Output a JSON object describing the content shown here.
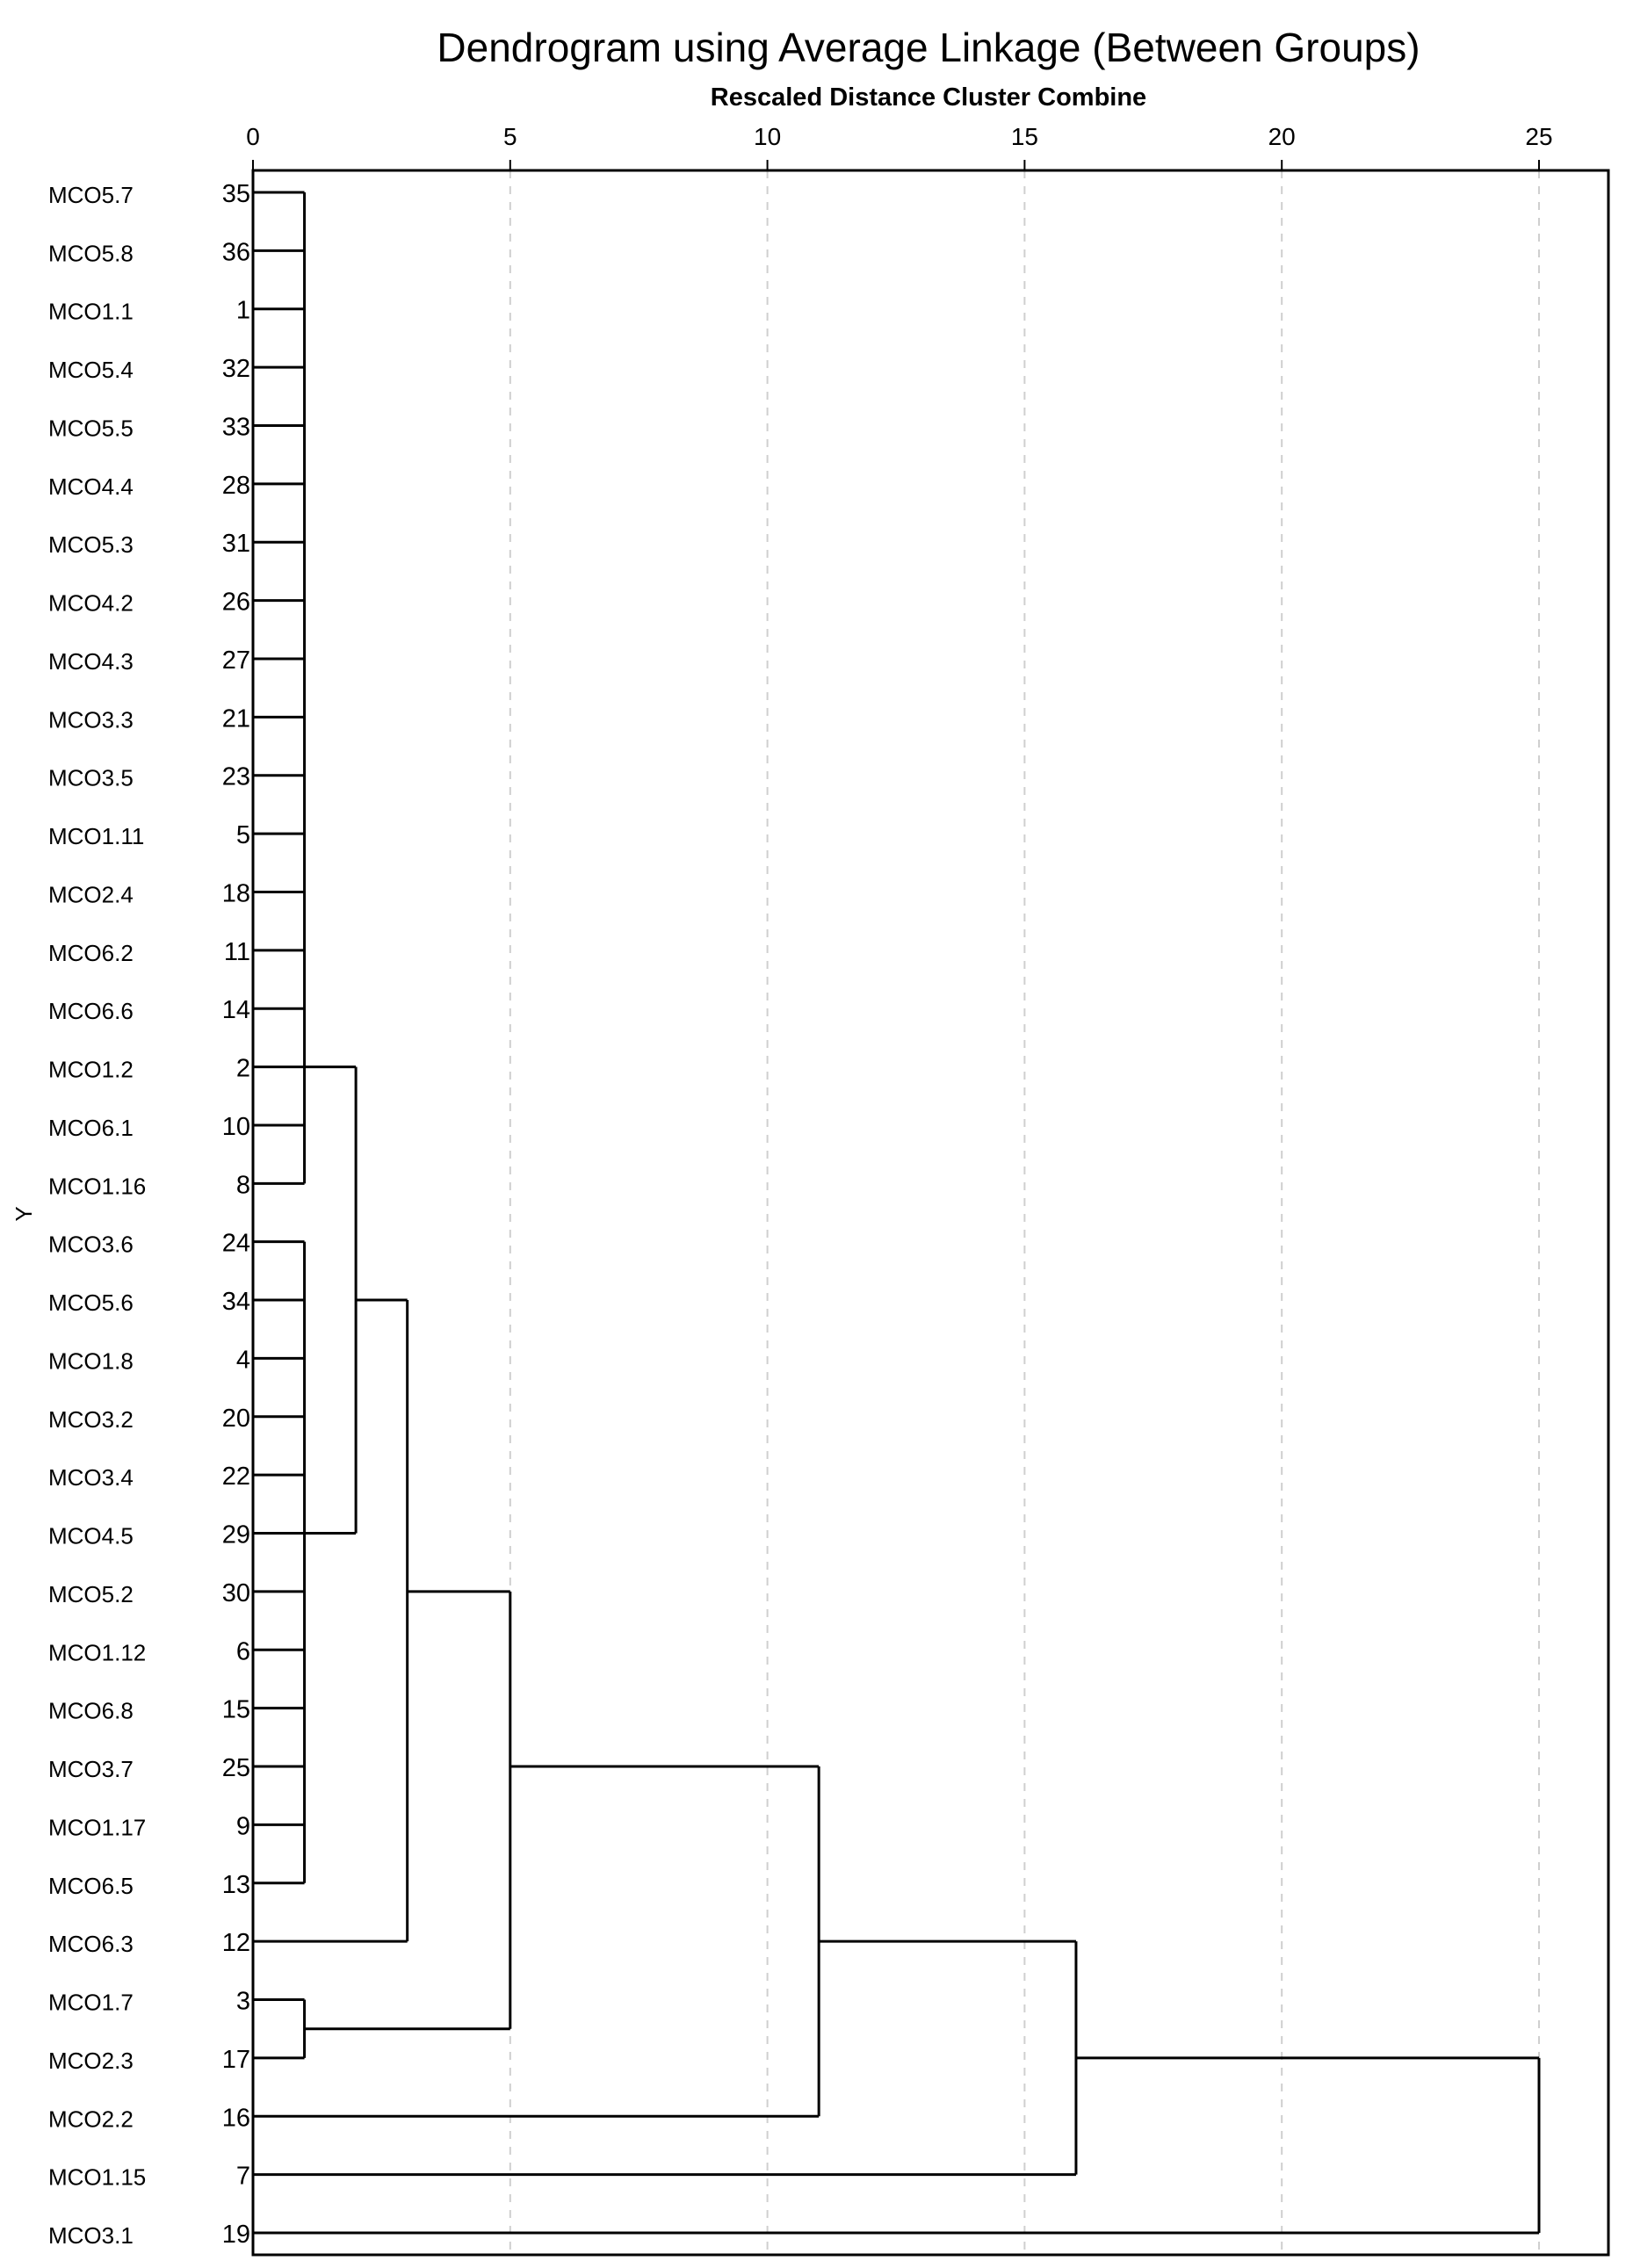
{
  "chart_data": {
    "type": "dendrogram",
    "title": "Dendrogram using Average Linkage (Between Groups)",
    "subtitle": "Rescaled Distance Cluster Combine",
    "ylabel": "Y",
    "xlim": [
      0,
      25
    ],
    "x_ticks": [
      0,
      5,
      10,
      15,
      20,
      25
    ],
    "x_tick_labels": [
      "0",
      "5",
      "10",
      "15",
      "20",
      "25"
    ],
    "grid": "vertical-dashed",
    "leaves": [
      {
        "label": "MCO5.7",
        "id": "35"
      },
      {
        "label": "MCO5.8",
        "id": "36"
      },
      {
        "label": "MCO1.1",
        "id": "1"
      },
      {
        "label": "MCO5.4",
        "id": "32"
      },
      {
        "label": "MCO5.5",
        "id": "33"
      },
      {
        "label": "MCO4.4",
        "id": "28"
      },
      {
        "label": "MCO5.3",
        "id": "31"
      },
      {
        "label": "MCO4.2",
        "id": "26"
      },
      {
        "label": "MCO4.3",
        "id": "27"
      },
      {
        "label": "MCO3.3",
        "id": "21"
      },
      {
        "label": "MCO3.5",
        "id": "23"
      },
      {
        "label": "MCO1.11",
        "id": "5"
      },
      {
        "label": "MCO2.4",
        "id": "18"
      },
      {
        "label": "MCO6.2",
        "id": "11"
      },
      {
        "label": "MCO6.6",
        "id": "14"
      },
      {
        "label": "MCO1.2",
        "id": "2"
      },
      {
        "label": "MCO6.1",
        "id": "10"
      },
      {
        "label": "MCO1.16",
        "id": "8"
      },
      {
        "label": "MCO3.6",
        "id": "24"
      },
      {
        "label": "MCO5.6",
        "id": "34"
      },
      {
        "label": "MCO1.8",
        "id": "4"
      },
      {
        "label": "MCO3.2",
        "id": "20"
      },
      {
        "label": "MCO3.4",
        "id": "22"
      },
      {
        "label": "MCO4.5",
        "id": "29"
      },
      {
        "label": "MCO5.2",
        "id": "30"
      },
      {
        "label": "MCO1.12",
        "id": "6"
      },
      {
        "label": "MCO6.8",
        "id": "15"
      },
      {
        "label": "MCO3.7",
        "id": "25"
      },
      {
        "label": "MCO1.17",
        "id": "9"
      },
      {
        "label": "MCO6.5",
        "id": "13"
      },
      {
        "label": "MCO6.3",
        "id": "12"
      },
      {
        "label": "MCO1.7",
        "id": "3"
      },
      {
        "label": "MCO2.3",
        "id": "17"
      },
      {
        "label": "MCO2.2",
        "id": "16"
      },
      {
        "label": "MCO1.15",
        "id": "7"
      },
      {
        "label": "MCO3.1",
        "id": "19"
      }
    ],
    "merges": [
      {
        "from_leaf": 0,
        "to_leaf": 17,
        "distance": 1,
        "join_leaf": 15
      },
      {
        "from_leaf": 18,
        "to_leaf": 29,
        "distance": 1,
        "join_leaf": 23
      },
      {
        "from_leaf": 31,
        "to_leaf": 32,
        "distance": 1,
        "join_leaf": 31.5
      },
      {
        "from_leaf": 15,
        "to_leaf": 23,
        "distance": 2,
        "join_leaf": 19
      },
      {
        "from_leaf": 19,
        "to_leaf": 30,
        "distance": 3,
        "join_leaf": 24
      },
      {
        "from_leaf": 24,
        "to_leaf": 31.5,
        "distance": 5,
        "join_leaf": 27
      },
      {
        "from_leaf": 27,
        "to_leaf": 33,
        "distance": 11,
        "join_leaf": 30
      },
      {
        "from_leaf": 30,
        "to_leaf": 34,
        "distance": 16,
        "join_leaf": 32
      },
      {
        "from_leaf": 32,
        "to_leaf": 35,
        "distance": 25,
        "join_leaf": 35
      }
    ]
  }
}
